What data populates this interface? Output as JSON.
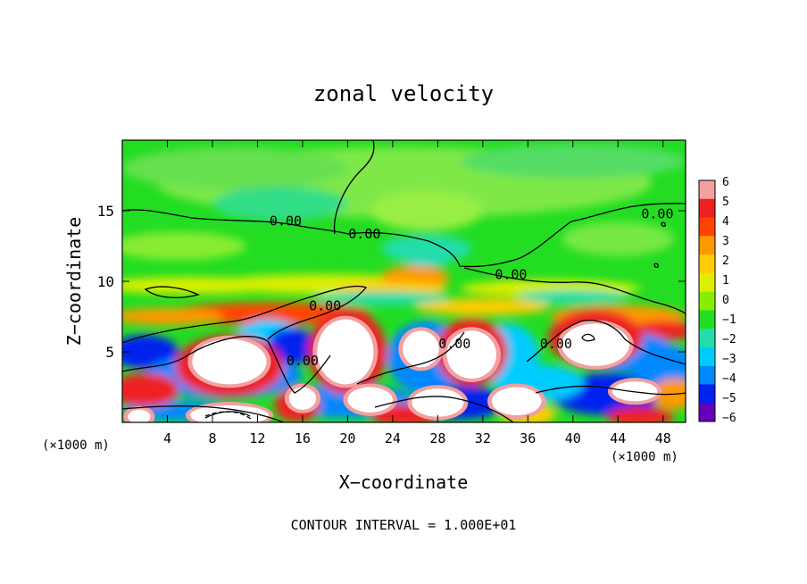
{
  "chart_data": {
    "type": "heatmap",
    "title": "zonal velocity",
    "xlabel": "X−coordinate",
    "ylabel": "Z−coordinate",
    "x_unit": "(×1000 m)",
    "x_unit_right": "(×1000 m)",
    "footer": "CONTOUR INTERVAL = 1.000E+01",
    "xlim": [
      0,
      50
    ],
    "ylim": [
      0,
      20
    ],
    "x_ticks": [
      4,
      8,
      12,
      16,
      20,
      24,
      28,
      32,
      36,
      40,
      44,
      48
    ],
    "y_ticks": [
      5,
      10,
      15
    ],
    "colorbar": {
      "levels": [
        6,
        5,
        4,
        3,
        2,
        1,
        0,
        -1,
        -2,
        -3,
        -4,
        -5,
        -6
      ],
      "labels": [
        "6",
        "5",
        "4",
        "3",
        "2",
        "1",
        "0",
        "−1",
        "−2",
        "−3",
        "−4",
        "−5",
        "−6"
      ],
      "colors": [
        "#f2a0a0",
        "#ee2020",
        "#ff4400",
        "#ff9900",
        "#ffcc00",
        "#ddee00",
        "#88ee00",
        "#22dd22",
        "#22ddaa",
        "#00ccff",
        "#0088ff",
        "#0022ee",
        "#6600bb"
      ]
    },
    "contour_labels": [
      {
        "text": "0.00",
        "x": 14.5,
        "z": 14.2
      },
      {
        "text": "0.00",
        "x": 21.5,
        "z": 13.3
      },
      {
        "text": "0.00",
        "x": 47.5,
        "z": 14.7
      },
      {
        "text": "0.00",
        "x": 34.5,
        "z": 10.4
      },
      {
        "text": "0.00",
        "x": 18.0,
        "z": 8.2
      },
      {
        "text": "0.00",
        "x": 16.0,
        "z": 4.3
      },
      {
        "text": "0.00",
        "x": 29.5,
        "z": 5.5
      },
      {
        "text": "0.00",
        "x": 38.5,
        "z": 5.5
      }
    ]
  }
}
